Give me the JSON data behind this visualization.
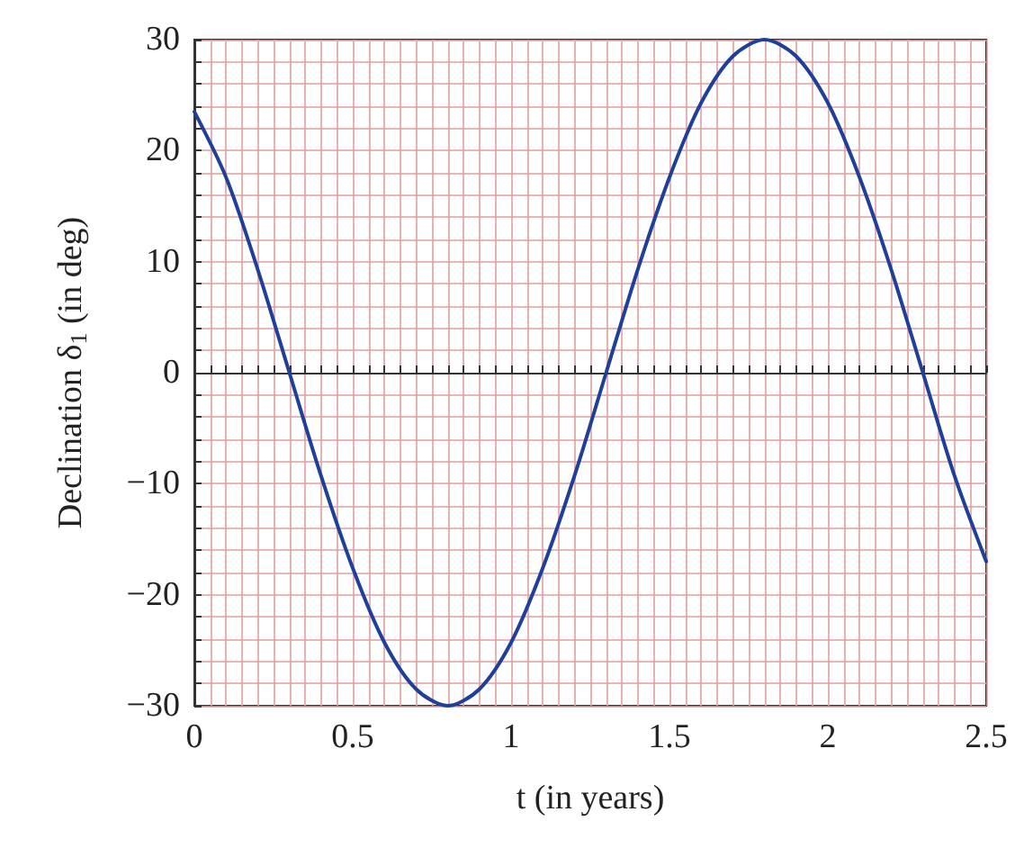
{
  "chart_data": {
    "type": "line",
    "xlabel": "t (in years)",
    "ylabel": "Declination δ$_{1}$ (in deg)",
    "x": [
      0,
      0.1,
      0.2,
      0.3,
      0.4,
      0.5,
      0.6,
      0.7,
      0.8,
      0.9,
      1.0,
      1.1,
      1.2,
      1.3,
      1.4,
      1.5,
      1.6,
      1.7,
      1.8,
      1.9,
      2.0,
      2.1,
      2.2,
      2.3,
      2.4,
      2.5
    ],
    "series": [
      {
        "color": "#1f3f9a",
        "values": [
          23.5,
          17.6,
          9.3,
          0,
          -9.3,
          -17.6,
          -24.3,
          -28.5,
          -30,
          -28.5,
          -24.3,
          -17.6,
          -9.3,
          0,
          9.3,
          17.6,
          24.3,
          28.5,
          30,
          28.5,
          24.3,
          17.6,
          9.3,
          0,
          -9.3,
          -17
        ]
      }
    ],
    "xlim": [
      0,
      2.5
    ],
    "xticks": [
      0,
      {
        "value": 0.05,
        "label": null
      },
      {
        "value": 0.1,
        "label": null
      },
      {
        "value": 0.15,
        "label": null
      },
      {
        "value": 0.2,
        "label": null
      },
      {
        "value": 0.25,
        "label": null
      },
      {
        "value": 0.3,
        "label": null
      },
      {
        "value": 0.35,
        "label": null
      },
      {
        "value": 0.4,
        "label": null
      },
      {
        "value": 0.45,
        "label": null
      },
      0.5,
      {
        "value": 0.55,
        "label": null
      },
      {
        "value": 0.6,
        "label": null
      },
      {
        "value": 0.65,
        "label": null
      },
      {
        "value": 0.7,
        "label": null
      },
      {
        "value": 0.75,
        "label": null
      },
      {
        "value": 0.8,
        "label": null
      },
      {
        "value": 0.85,
        "label": null
      },
      {
        "value": 0.9,
        "label": null
      },
      {
        "value": 0.95,
        "label": null
      },
      1,
      {
        "value": 1.05,
        "label": null
      },
      {
        "value": 1.1,
        "label": null
      },
      {
        "value": 1.15,
        "label": null
      },
      {
        "value": 1.2,
        "label": null
      },
      {
        "value": 1.25,
        "label": null
      },
      {
        "value": 1.3,
        "label": null
      },
      {
        "value": 1.35,
        "label": null
      },
      {
        "value": 1.4,
        "label": null
      },
      {
        "value": 1.45,
        "label": null
      },
      1.5,
      {
        "value": 1.55,
        "label": null
      },
      {
        "value": 1.6,
        "label": null
      },
      {
        "value": 1.65,
        "label": null
      },
      {
        "value": 1.7,
        "label": null
      },
      {
        "value": 1.75,
        "label": null
      },
      {
        "value": 1.8,
        "label": null
      },
      {
        "value": 1.85,
        "label": null
      },
      {
        "value": 1.9,
        "label": null
      },
      {
        "value": 1.95,
        "label": null
      },
      2,
      {
        "value": 2.05,
        "label": null
      },
      {
        "value": 2.1,
        "label": null
      },
      {
        "value": 2.15,
        "label": null
      },
      {
        "value": 2.2,
        "label": null
      },
      {
        "value": 2.25,
        "label": null
      },
      {
        "value": 2.3,
        "label": null
      },
      {
        "value": 2.35,
        "label": null
      },
      {
        "value": 2.4,
        "label": null
      },
      {
        "value": 2.45,
        "label": null
      },
      2.5
    ],
    "ylim": [
      -30,
      30
    ],
    "yticks": [
      -30,
      {
        "value": -28,
        "label": null
      },
      {
        "value": -26,
        "label": null
      },
      {
        "value": -24,
        "label": null
      },
      {
        "value": -22,
        "label": null
      },
      -20,
      {
        "value": -18,
        "label": null
      },
      {
        "value": -16,
        "label": null
      },
      {
        "value": -14,
        "label": null
      },
      {
        "value": -12,
        "label": null
      },
      -10,
      {
        "value": -8,
        "label": null
      },
      {
        "value": -6,
        "label": null
      },
      {
        "value": -4,
        "label": null
      },
      {
        "value": -2,
        "label": null
      },
      0,
      {
        "value": 2,
        "label": null
      },
      {
        "value": 4,
        "label": null
      },
      {
        "value": 6,
        "label": null
      },
      {
        "value": 8,
        "label": null
      },
      10,
      {
        "value": 12,
        "label": null
      },
      {
        "value": 14,
        "label": null
      },
      {
        "value": 16,
        "label": null
      },
      {
        "value": 18,
        "label": null
      },
      20,
      {
        "value": 22,
        "label": null
      },
      {
        "value": 24,
        "label": null
      },
      {
        "value": 26,
        "label": null
      },
      {
        "value": 28,
        "label": null
      },
      30
    ],
    "grid": true,
    "marker": "none",
    "line_style": "solid"
  }
}
